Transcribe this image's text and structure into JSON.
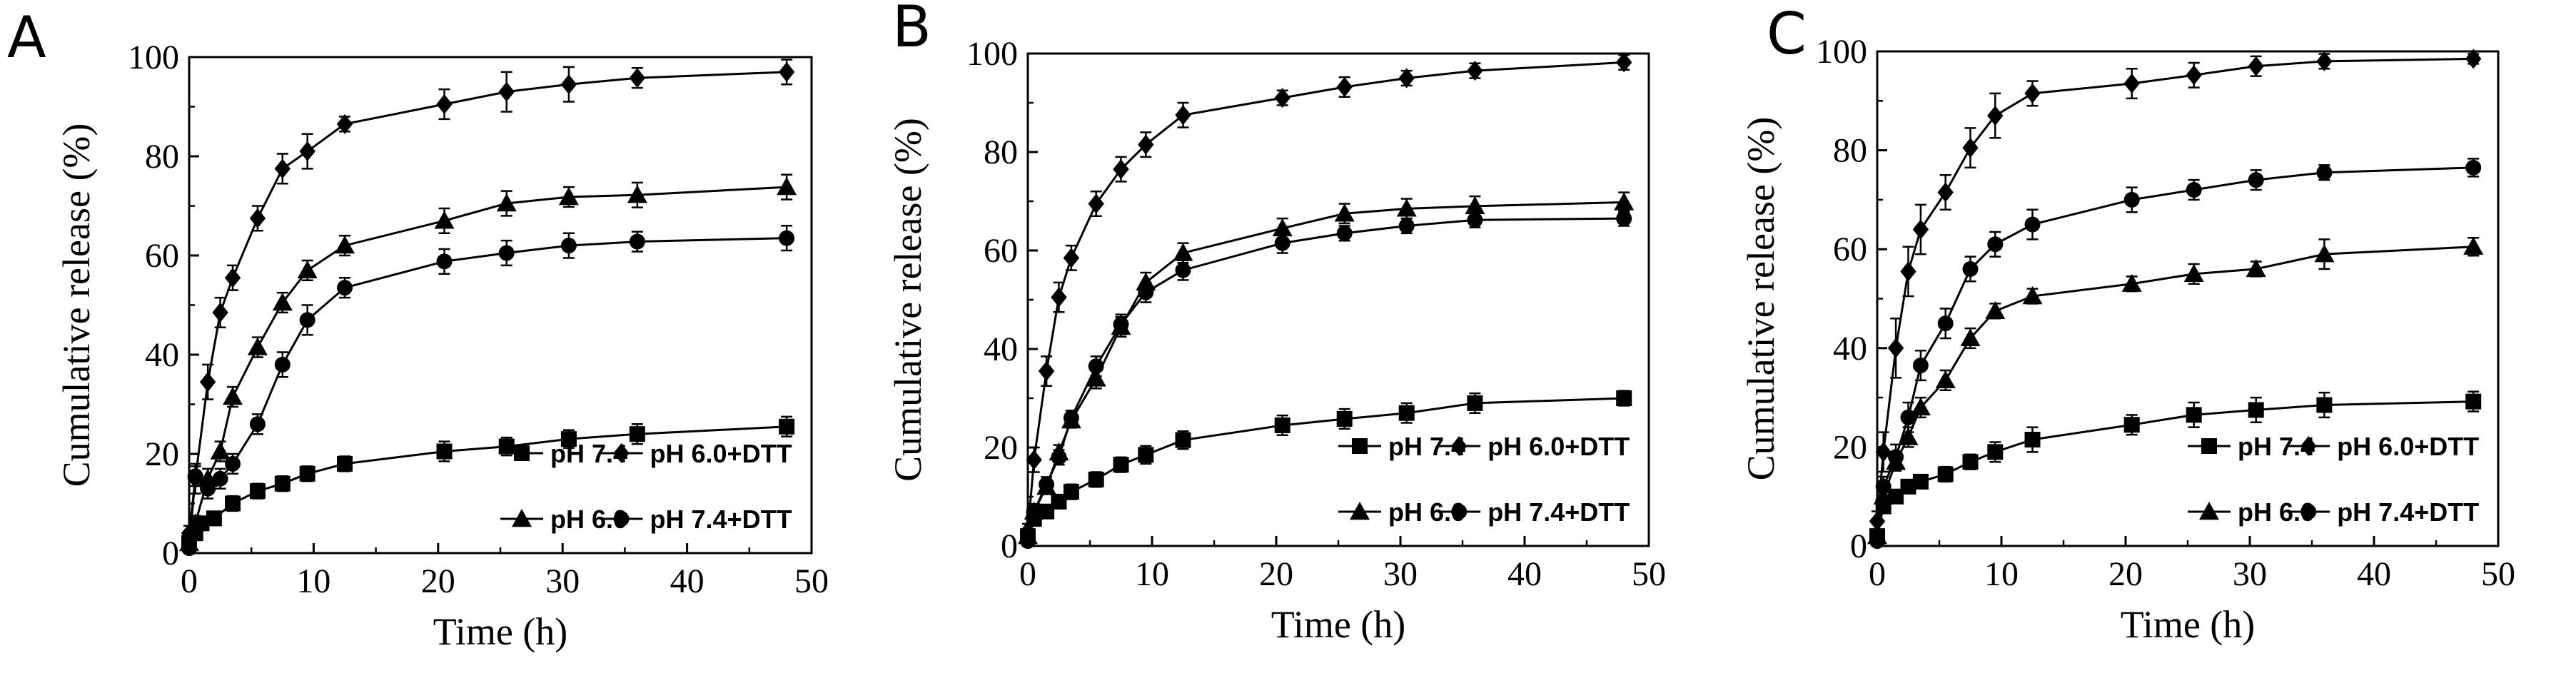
{
  "chart_data": [
    {
      "type": "line",
      "panel_label": "A",
      "xlabel": "Time (h)",
      "ylabel": "Cumulative release (%)",
      "xlim": [
        0,
        50
      ],
      "ylim": [
        0,
        100
      ],
      "xticks": [
        "0",
        "10",
        "20",
        "30",
        "40",
        "50"
      ],
      "yticks": [
        "0",
        "20",
        "40",
        "60",
        "80",
        "100"
      ],
      "grid": false,
      "legend_position": "bottom-right",
      "series": [
        {
          "name": "pH 7.4",
          "marker": "square",
          "x": [
            0,
            0.5,
            1,
            2,
            3.5,
            5.5,
            7.5,
            9.5,
            12.5,
            20.5,
            25.5,
            30.5,
            36,
            48
          ],
          "y": [
            2,
            4,
            6,
            7,
            10,
            12.5,
            14,
            16,
            18,
            20.5,
            21.5,
            23,
            24,
            25.5
          ],
          "err": [
            1,
            1.2,
            1.2,
            1.4,
            1.5,
            1.5,
            1.5,
            1.5,
            1.5,
            2,
            1.8,
            1.8,
            2,
            2
          ]
        },
        {
          "name": "pH 6.0+DTT",
          "marker": "diamond",
          "x": [
            0,
            0.5,
            1.5,
            2.5,
            3.5,
            5.5,
            7.5,
            9.5,
            12.5,
            20.5,
            25.5,
            30.5,
            36,
            48
          ],
          "y": [
            4,
            15,
            34.5,
            48.5,
            55.5,
            67.5,
            77.5,
            81,
            86.5,
            90.5,
            93,
            94.5,
            95.8,
            97
          ],
          "err": [
            1.5,
            3,
            3.5,
            3,
            2.5,
            2.5,
            3,
            3.5,
            1.5,
            3,
            4,
            3.5,
            2,
            2.5
          ]
        },
        {
          "name": "pH 6.0",
          "marker": "triangle",
          "x": [
            0,
            0.5,
            1.5,
            2.5,
            3.5,
            5.5,
            7.5,
            9.5,
            12.5,
            20.5,
            25.5,
            30.5,
            36,
            48
          ],
          "y": [
            2,
            6,
            15,
            20.5,
            31.5,
            41.5,
            50.5,
            57,
            62,
            67,
            70.5,
            71.8,
            72.2,
            73.8
          ],
          "err": [
            1,
            1.5,
            2,
            2,
            2,
            2,
            2,
            2,
            2,
            2.5,
            2.5,
            2,
            2.5,
            2.5
          ]
        },
        {
          "name": "pH 7.4+DTT",
          "marker": "circle",
          "x": [
            0,
            0.5,
            1.5,
            2.5,
            3.5,
            5.5,
            7.5,
            9.5,
            12.5,
            20.5,
            25.5,
            30.5,
            36,
            48
          ],
          "y": [
            1,
            15.5,
            13,
            15,
            18,
            26,
            38,
            47,
            53.5,
            58.8,
            60.5,
            62,
            62.8,
            63.5
          ],
          "err": [
            1,
            2,
            2,
            2,
            2,
            2,
            2.5,
            3,
            2,
            2.5,
            2.5,
            2.5,
            2,
            2.5
          ]
        }
      ]
    },
    {
      "type": "line",
      "panel_label": "B",
      "xlabel": "Time (h)",
      "ylabel": "Cumulative release (%)",
      "xlim": [
        0,
        50
      ],
      "ylim": [
        0,
        100
      ],
      "xticks": [
        "0",
        "10",
        "20",
        "30",
        "40",
        "50"
      ],
      "yticks": [
        "0",
        "20",
        "40",
        "60",
        "80",
        "100"
      ],
      "grid": false,
      "legend_position": "bottom-right",
      "series": [
        {
          "name": "pH 7.4",
          "marker": "square",
          "x": [
            0,
            0.5,
            1.5,
            2.5,
            3.5,
            5.5,
            7.5,
            9.5,
            12.5,
            20.5,
            25.5,
            30.5,
            36,
            48
          ],
          "y": [
            2,
            5.5,
            7,
            9,
            11,
            13.5,
            16.5,
            18.5,
            21.5,
            24.5,
            25.8,
            27,
            29,
            30
          ],
          "err": [
            1,
            1.2,
            1.2,
            1.2,
            1.5,
            1.5,
            1.5,
            1.8,
            1.8,
            2,
            2,
            2,
            2,
            1.5
          ]
        },
        {
          "name": "pH 6.0+DTT",
          "marker": "diamond",
          "x": [
            0,
            0.5,
            1.5,
            2.5,
            3.5,
            5.5,
            7.5,
            9.5,
            12.5,
            20.5,
            25.5,
            30.5,
            36,
            48
          ],
          "y": [
            3,
            17.5,
            35.5,
            50.5,
            58.5,
            69.5,
            76.5,
            81.5,
            87.5,
            91,
            93.2,
            95,
            96.5,
            98.2
          ],
          "err": [
            1.5,
            2.5,
            3,
            3,
            2.5,
            2.5,
            2.5,
            2.5,
            2.5,
            1.5,
            2,
            1.5,
            1.5,
            1.5
          ]
        },
        {
          "name": "pH 6.0",
          "marker": "triangle",
          "x": [
            0,
            0.5,
            1.5,
            2.5,
            3.5,
            5.5,
            7.5,
            9.5,
            12.5,
            20.5,
            25.5,
            30.5,
            36,
            48
          ],
          "y": [
            2,
            7,
            12,
            19,
            25.5,
            34,
            44.5,
            53.5,
            59.5,
            64.5,
            67.5,
            68.5,
            69,
            69.8
          ],
          "err": [
            1,
            1.5,
            1.5,
            1.5,
            1.5,
            2,
            2,
            2,
            2,
            2,
            2,
            2,
            2,
            2
          ]
        },
        {
          "name": "pH 7.4+DTT",
          "marker": "circle",
          "x": [
            0,
            0.5,
            1.5,
            2.5,
            3.5,
            5.5,
            7.5,
            9.5,
            12.5,
            20.5,
            25.5,
            30.5,
            36,
            48
          ],
          "y": [
            1,
            7,
            12.5,
            18,
            26,
            36.5,
            45,
            51.5,
            56,
            61.5,
            63.5,
            65,
            66.2,
            66.5
          ],
          "err": [
            1,
            1.5,
            1.5,
            1.5,
            1.5,
            2,
            2,
            2,
            2,
            2,
            1.5,
            1.5,
            1.5,
            1.5
          ]
        }
      ]
    },
    {
      "type": "line",
      "panel_label": "C",
      "xlabel": "Time (h)",
      "ylabel": "Cumulative release (%)",
      "xlim": [
        0,
        50
      ],
      "ylim": [
        0,
        100
      ],
      "xticks": [
        "0",
        "10",
        "20",
        "30",
        "40",
        "50"
      ],
      "yticks": [
        "0",
        "20",
        "40",
        "60",
        "80",
        "100"
      ],
      "grid": false,
      "legend_position": "bottom-right",
      "series": [
        {
          "name": "pH 7.4",
          "marker": "square",
          "x": [
            0,
            0.5,
            1.5,
            2.5,
            3.5,
            5.5,
            7.5,
            9.5,
            12.5,
            20.5,
            25.5,
            30.5,
            36,
            48
          ],
          "y": [
            2,
            8,
            10,
            12,
            13,
            14.5,
            17,
            19,
            21.5,
            24.5,
            26.5,
            27.5,
            28.5,
            29.2
          ],
          "err": [
            1,
            1.2,
            1.2,
            1.2,
            1.2,
            1.5,
            1.5,
            2,
            2.5,
            2,
            2.5,
            2.5,
            2.5,
            2
          ]
        },
        {
          "name": "pH 6.0+DTT",
          "marker": "diamond",
          "x": [
            0,
            0.5,
            1.5,
            2.5,
            3.5,
            5.5,
            7.5,
            9.5,
            12.5,
            20.5,
            25.5,
            30.5,
            36,
            48
          ],
          "y": [
            5,
            19,
            40,
            55.5,
            64,
            71.5,
            80.5,
            87,
            91.5,
            93.5,
            95.2,
            97,
            98,
            98.5
          ],
          "err": [
            2,
            4,
            6,
            5,
            5,
            3.5,
            4,
            4.5,
            2.5,
            3,
            2.5,
            2,
            1.5,
            1
          ]
        },
        {
          "name": "pH 6.0",
          "marker": "triangle",
          "x": [
            0,
            0.5,
            1.5,
            2.5,
            3.5,
            5.5,
            7.5,
            9.5,
            12.5,
            20.5,
            25.5,
            30.5,
            36,
            48
          ],
          "y": [
            2,
            10,
            17,
            22,
            28,
            33.5,
            42,
            47.5,
            50.5,
            53,
            55,
            56,
            59,
            60.5
          ],
          "err": [
            1,
            1.5,
            1.8,
            2,
            2,
            2,
            2,
            1.5,
            1.5,
            1.5,
            2,
            1.5,
            3,
            1.8
          ]
        },
        {
          "name": "pH 7.4+DTT",
          "marker": "circle",
          "x": [
            0,
            0.5,
            1.5,
            2.5,
            3.5,
            5.5,
            7.5,
            9.5,
            12.5,
            20.5,
            25.5,
            30.5,
            36,
            48
          ],
          "y": [
            1,
            12,
            18,
            26,
            36.5,
            45,
            56,
            61,
            65,
            70,
            72,
            74,
            75.5,
            76.5
          ],
          "err": [
            1,
            2,
            2.5,
            3,
            3,
            3,
            2.5,
            2.5,
            3,
            2.5,
            2,
            2,
            1.5,
            1.8
          ]
        }
      ]
    }
  ]
}
